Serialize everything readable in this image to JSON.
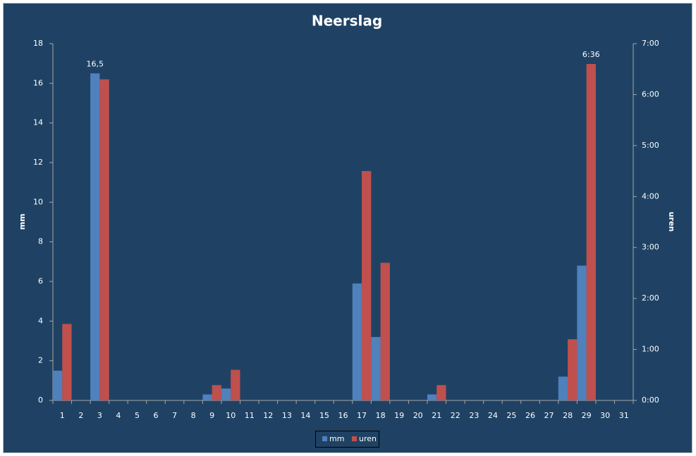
{
  "chart_data": {
    "type": "bar",
    "title": "Neerslag",
    "y_label": "mm",
    "y2_label": "uren",
    "categories": [
      "1",
      "2",
      "3",
      "4",
      "5",
      "6",
      "7",
      "8",
      "9",
      "10",
      "11",
      "12",
      "13",
      "14",
      "15",
      "16",
      "17",
      "18",
      "19",
      "20",
      "21",
      "22",
      "23",
      "24",
      "25",
      "26",
      "27",
      "28",
      "29",
      "30",
      "31"
    ],
    "series": [
      {
        "name": "mm",
        "color": "#4f81bd",
        "values": [
          1.5,
          0,
          16.5,
          0,
          0,
          0,
          0,
          0,
          0.3,
          0.6,
          0,
          0,
          0,
          0,
          0,
          0,
          5.9,
          3.2,
          0,
          0,
          0.3,
          0,
          0,
          0,
          0,
          0,
          0,
          1.2,
          6.8,
          0,
          0
        ],
        "value_labels": [
          null,
          null,
          "16,5",
          null,
          null,
          null,
          null,
          null,
          null,
          null,
          null,
          null,
          null,
          null,
          null,
          null,
          null,
          null,
          null,
          null,
          null,
          null,
          null,
          null,
          null,
          null,
          null,
          null,
          null,
          null,
          null
        ]
      },
      {
        "name": "uren",
        "color": "#c0504d",
        "axis": "y2",
        "values": [
          1.5,
          0,
          6.3,
          0,
          0,
          0,
          0,
          0,
          0.3,
          0.6,
          0,
          0,
          0,
          0,
          0,
          0,
          4.5,
          2.7,
          0,
          0,
          0.3,
          0,
          0,
          0,
          0,
          0,
          0,
          1.2,
          6.6,
          0,
          0
        ],
        "value_labels": [
          null,
          null,
          null,
          null,
          null,
          null,
          null,
          null,
          null,
          null,
          null,
          null,
          null,
          null,
          null,
          null,
          null,
          null,
          null,
          null,
          null,
          null,
          null,
          null,
          null,
          null,
          null,
          null,
          "6:36",
          null,
          null
        ]
      }
    ],
    "ylim": [
      0,
      18
    ],
    "yticks": [
      0,
      2,
      4,
      6,
      8,
      10,
      12,
      14,
      16,
      18
    ],
    "y2lim": [
      0,
      7
    ],
    "y2ticks": [
      {
        "value": 0,
        "label": "0:00"
      },
      {
        "value": 1,
        "label": "1:00"
      },
      {
        "value": 2,
        "label": "2:00"
      },
      {
        "value": 3,
        "label": "3:00"
      },
      {
        "value": 4,
        "label": "4:00"
      },
      {
        "value": 5,
        "label": "5:00"
      },
      {
        "value": 6,
        "label": "6:00"
      },
      {
        "value": 7,
        "label": "7:00"
      }
    ],
    "grid": false,
    "legend": "bottom"
  }
}
